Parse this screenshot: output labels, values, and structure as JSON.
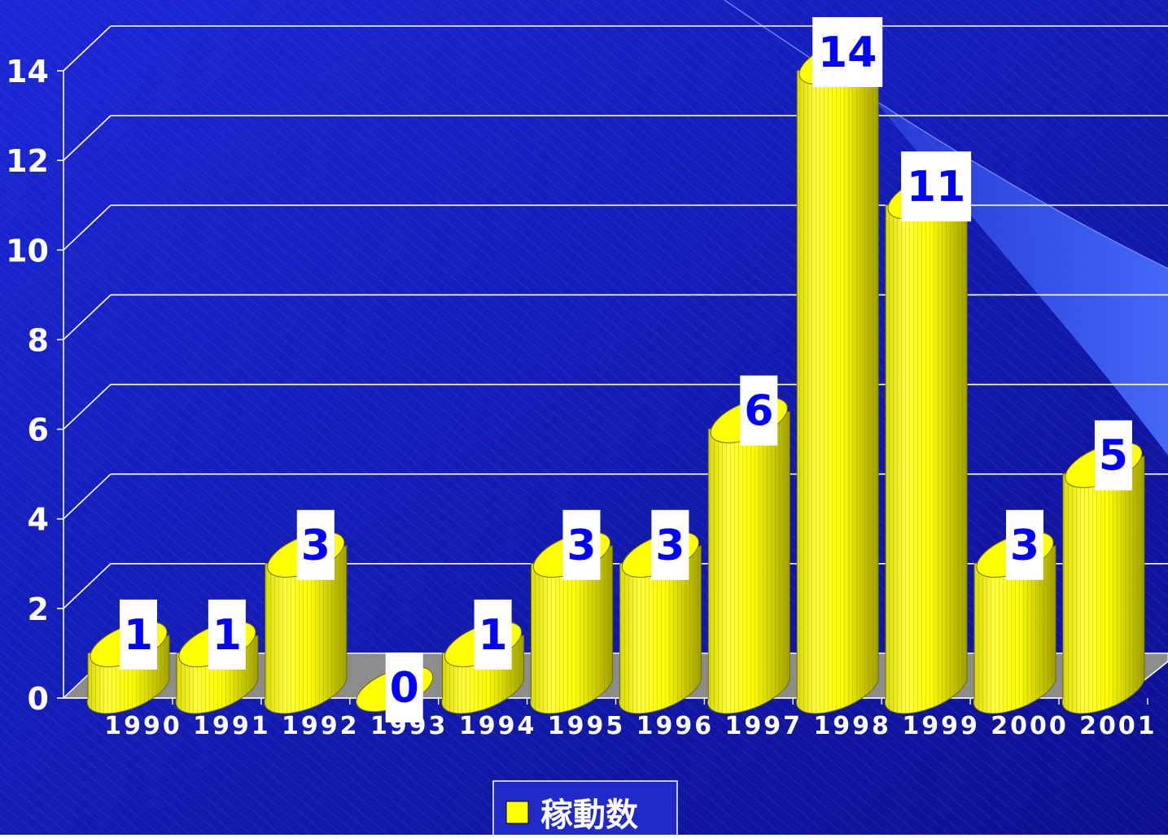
{
  "chart_data": {
    "type": "bar",
    "categories": [
      "1990",
      "1991",
      "1992",
      "1993",
      "1994",
      "1995",
      "1996",
      "1997",
      "1998",
      "1999",
      "2000",
      "2001"
    ],
    "series": [
      {
        "name": "稼動数",
        "values": [
          1,
          1,
          3,
          0,
          1,
          3,
          3,
          6,
          14,
          11,
          3,
          5
        ]
      }
    ],
    "ylim": [
      0,
      14
    ],
    "yticks": [
      "0",
      "2",
      "4",
      "6",
      "8",
      "10",
      "12",
      "14"
    ],
    "grid": true,
    "legend_position": "bottom-center",
    "data_labels": true
  },
  "colors": {
    "background": "#1a22c8",
    "bar": "#ffff00",
    "bar_dark": "#b8b800",
    "bar_outline": "#6e6e00",
    "label_text": "#0000ff",
    "label_box": "#ffffff",
    "axis_text": "#ffffff",
    "floor": "#8c8c8c"
  }
}
